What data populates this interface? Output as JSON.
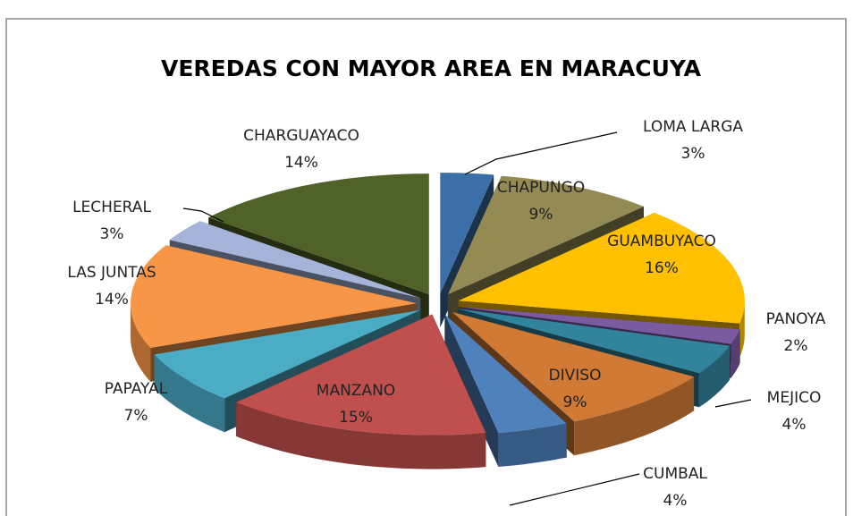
{
  "chart_data": {
    "type": "pie3d",
    "title": "VEREDAS CON MAYOR AREA EN MARACUYA",
    "categories": [
      "LOMA LARGA",
      "CHAPUNGO",
      "GUAMBUYACO",
      "PANOYA",
      "MEJICO",
      "DIVISO",
      "CUMBAL",
      "MANZANO",
      "PAPAYAL",
      "LAS JUNTAS",
      "LECHERAL",
      "CHARGUAYACO"
    ],
    "values": [
      3,
      9,
      16,
      2,
      4,
      9,
      4,
      15,
      7,
      14,
      3,
      14
    ],
    "value_labels": [
      "3%",
      "9%",
      "16%",
      "2%",
      "4%",
      "9%",
      "4%",
      "15%",
      "7%",
      "14%",
      "3%",
      "14%"
    ],
    "colors": [
      "#3c6ea7",
      "#948a54",
      "#ffc000",
      "#7a5aa0",
      "#31849b",
      "#d07a36",
      "#4f81bd",
      "#c0504d",
      "#4bacc6",
      "#f79646",
      "#a5b4d8",
      "#4f6228"
    ]
  }
}
